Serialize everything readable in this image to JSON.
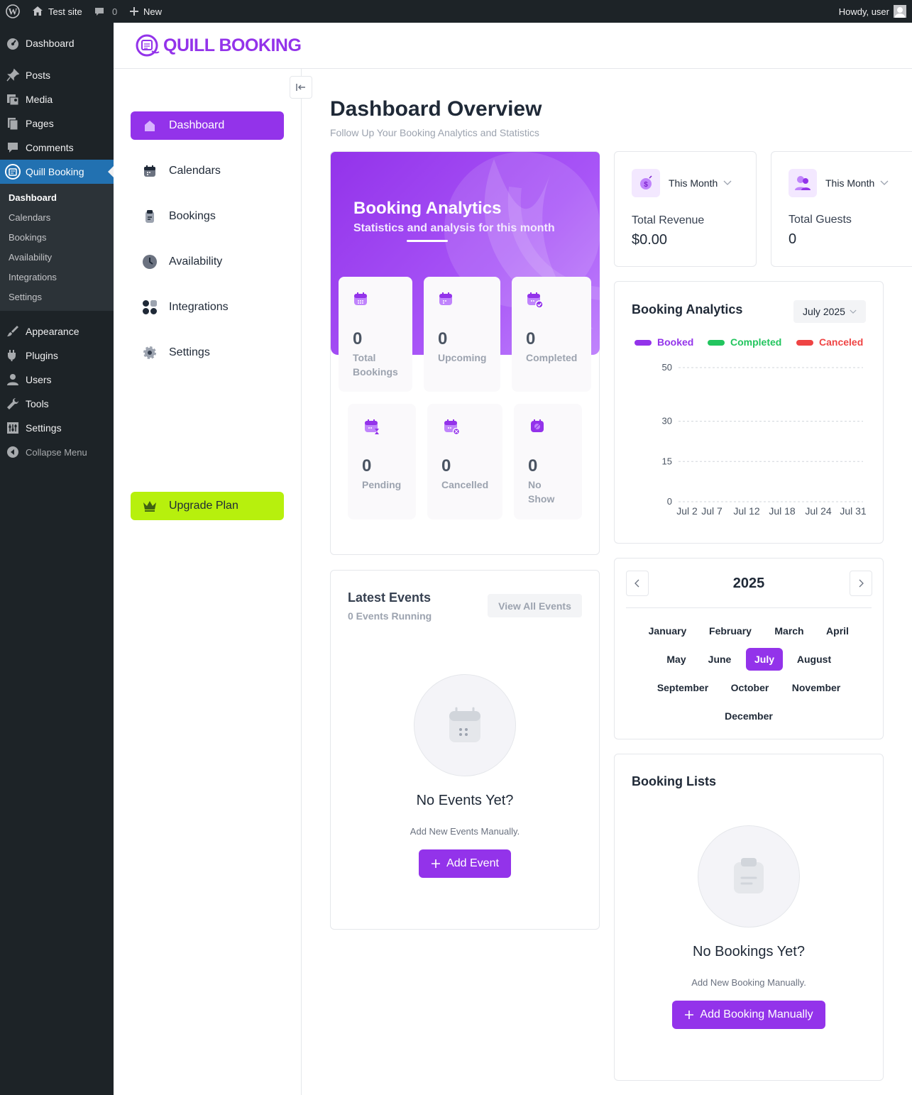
{
  "admin_bar": {
    "site_name": "Test site",
    "comments_count": "0",
    "new_label": "New",
    "howdy": "Howdy, user"
  },
  "wp_menu": {
    "dashboard": "Dashboard",
    "posts": "Posts",
    "media": "Media",
    "pages": "Pages",
    "comments": "Comments",
    "quill": "Quill Booking",
    "sub": [
      "Dashboard",
      "Calendars",
      "Bookings",
      "Availability",
      "Integrations",
      "Settings"
    ],
    "appearance": "Appearance",
    "plugins": "Plugins",
    "users": "Users",
    "tools": "Tools",
    "settings": "Settings",
    "collapse": "Collapse Menu"
  },
  "logo_text": "QUILL BOOKING",
  "plugin_nav": {
    "items": [
      "Dashboard",
      "Calendars",
      "Bookings",
      "Availability",
      "Integrations",
      "Settings"
    ],
    "upgrade": "Upgrade Plan"
  },
  "page": {
    "title": "Dashboard Overview",
    "subtitle": "Follow Up Your Booking Analytics and Statistics"
  },
  "hero": {
    "title": "Booking Analytics",
    "subtitle": "Statistics and analysis for this month"
  },
  "stats": [
    {
      "value": "0",
      "label": "Total Bookings"
    },
    {
      "value": "0",
      "label": "Upcoming"
    },
    {
      "value": "0",
      "label": "Completed"
    },
    {
      "value": "0",
      "label": "Pending"
    },
    {
      "value": "0",
      "label": "Cancelled"
    },
    {
      "value": "0",
      "label": "No Show"
    }
  ],
  "revenue": {
    "period": "This Month",
    "label": "Total Revenue",
    "value": "$0.00"
  },
  "guests": {
    "period": "This Month",
    "label": "Total Guests",
    "value": "0"
  },
  "analytics": {
    "title": "Booking Analytics",
    "month_select": "July 2025"
  },
  "chart_data": {
    "type": "line",
    "x": [
      "Jul 2",
      "Jul 7",
      "Jul 12",
      "Jul 18",
      "Jul 24",
      "Jul 31"
    ],
    "series": [
      {
        "name": "Booked",
        "color": "#9333ea",
        "values": [
          0,
          0,
          0,
          0,
          0,
          0
        ]
      },
      {
        "name": "Completed",
        "color": "#22c55e",
        "values": [
          0,
          0,
          0,
          0,
          0,
          0
        ]
      },
      {
        "name": "Canceled",
        "color": "#ef4444",
        "values": [
          0,
          0,
          0,
          0,
          0,
          0
        ]
      }
    ],
    "yticks": [
      0,
      15,
      30,
      50
    ],
    "ylim": [
      0,
      50
    ],
    "grid": true,
    "legend": "top-left"
  },
  "calendar": {
    "year": "2025",
    "months": [
      "January",
      "February",
      "March",
      "April",
      "May",
      "June",
      "July",
      "August",
      "September",
      "October",
      "November",
      "December"
    ],
    "selected": "July"
  },
  "events": {
    "title": "Latest Events",
    "count": "0 Events Running",
    "view_all": "View All Events",
    "empty_title": "No Events Yet?",
    "empty_sub": "Add New Events Manually.",
    "add": "Add Event"
  },
  "bookings": {
    "title": "Booking Lists",
    "empty_title": "No Bookings Yet?",
    "empty_sub": "Add New Booking Manually.",
    "add": "Add Booking Manually"
  },
  "colors": {
    "accent": "#9333ea",
    "upgrade": "#b7f00d",
    "wp_dark": "#1d2327",
    "wp_blue": "#2271b1"
  }
}
